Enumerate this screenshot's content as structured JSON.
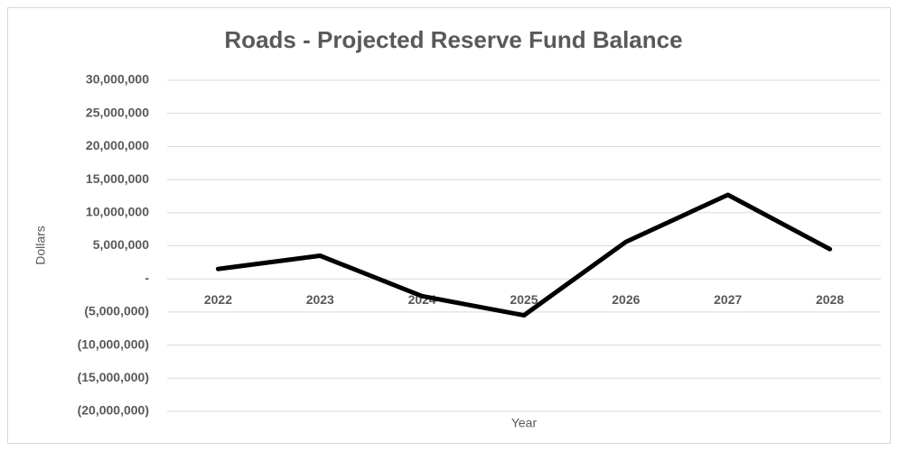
{
  "chart_data": {
    "type": "line",
    "title": "Roads - Projected Reserve Fund Balance",
    "x_label": "Year",
    "y_label": "Dollars",
    "categories": [
      "2022",
      "2023",
      "2024",
      "2025",
      "2026",
      "2027",
      "2028"
    ],
    "series": [
      {
        "name": "Reserve Fund Balance",
        "color": "#000000",
        "values": [
          1500000,
          3500000,
          -2600000,
          -5500000,
          5600000,
          12700000,
          4500000
        ]
      }
    ],
    "ylim": [
      -20000000,
      30000000
    ],
    "yticks": [
      {
        "value": -20000000,
        "label": "(20,000,000)"
      },
      {
        "value": -15000000,
        "label": "(15,000,000)"
      },
      {
        "value": -10000000,
        "label": "(10,000,000)"
      },
      {
        "value": -5000000,
        "label": "(5,000,000)"
      },
      {
        "value": 0,
        "label": "-"
      },
      {
        "value": 5000000,
        "label": "5,000,000"
      },
      {
        "value": 10000000,
        "label": "10,000,000"
      },
      {
        "value": 15000000,
        "label": "15,000,000"
      },
      {
        "value": 20000000,
        "label": "20,000,000"
      },
      {
        "value": 25000000,
        "label": "25,000,000"
      },
      {
        "value": 30000000,
        "label": "30,000,000"
      }
    ],
    "grid": true
  }
}
